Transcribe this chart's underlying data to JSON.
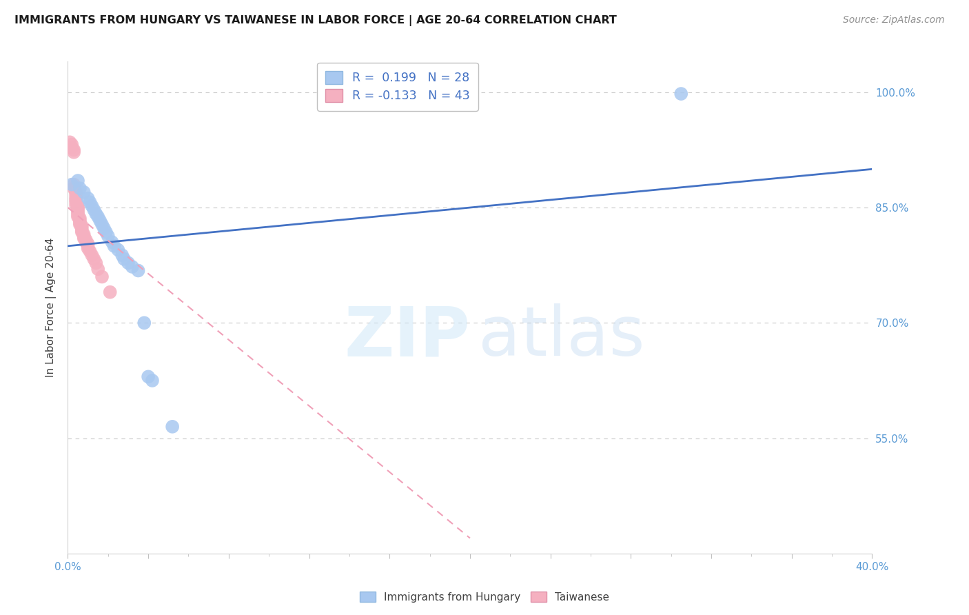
{
  "title": "IMMIGRANTS FROM HUNGARY VS TAIWANESE IN LABOR FORCE | AGE 20-64 CORRELATION CHART",
  "source": "Source: ZipAtlas.com",
  "ylabel": "In Labor Force | Age 20-64",
  "xlim": [
    0.0,
    0.4
  ],
  "ylim": [
    0.4,
    1.04
  ],
  "yticks": [
    0.55,
    0.7,
    0.85,
    1.0
  ],
  "ytick_labels": [
    "55.0%",
    "70.0%",
    "85.0%",
    "100.0%"
  ],
  "xtick_major": [
    0.0,
    0.4
  ],
  "xtick_major_labels": [
    "0.0%",
    "40.0%"
  ],
  "hungary_R": 0.199,
  "hungary_N": 28,
  "taiwanese_R": -0.133,
  "taiwanese_N": 43,
  "hungary_color": "#a8c8f0",
  "taiwanese_color": "#f5b0c0",
  "hungary_line_color": "#4472c4",
  "taiwanese_line_color": "#f0a0b8",
  "hungary_x": [
    0.002,
    0.005,
    0.006,
    0.008,
    0.01,
    0.011,
    0.012,
    0.013,
    0.014,
    0.015,
    0.016,
    0.017,
    0.018,
    0.019,
    0.02,
    0.022,
    0.023,
    0.025,
    0.027,
    0.028,
    0.03,
    0.032,
    0.035,
    0.038,
    0.04,
    0.042,
    0.052,
    0.305
  ],
  "hungary_y": [
    0.88,
    0.885,
    0.875,
    0.87,
    0.862,
    0.857,
    0.852,
    0.847,
    0.842,
    0.838,
    0.833,
    0.828,
    0.823,
    0.818,
    0.813,
    0.805,
    0.8,
    0.795,
    0.788,
    0.783,
    0.778,
    0.773,
    0.768,
    0.7,
    0.63,
    0.625,
    0.565,
    0.998
  ],
  "taiwanese_x": [
    0.001,
    0.002,
    0.002,
    0.003,
    0.003,
    0.003,
    0.003,
    0.004,
    0.004,
    0.004,
    0.004,
    0.004,
    0.004,
    0.005,
    0.005,
    0.005,
    0.005,
    0.005,
    0.005,
    0.005,
    0.006,
    0.006,
    0.006,
    0.006,
    0.007,
    0.007,
    0.007,
    0.007,
    0.008,
    0.008,
    0.008,
    0.009,
    0.009,
    0.01,
    0.01,
    0.01,
    0.011,
    0.012,
    0.013,
    0.014,
    0.015,
    0.017,
    0.021
  ],
  "taiwanese_y": [
    0.935,
    0.932,
    0.928,
    0.925,
    0.922,
    0.88,
    0.875,
    0.87,
    0.867,
    0.863,
    0.86,
    0.857,
    0.853,
    0.852,
    0.85,
    0.848,
    0.845,
    0.843,
    0.84,
    0.838,
    0.836,
    0.833,
    0.83,
    0.828,
    0.826,
    0.823,
    0.82,
    0.818,
    0.815,
    0.812,
    0.81,
    0.808,
    0.805,
    0.803,
    0.8,
    0.797,
    0.793,
    0.788,
    0.783,
    0.778,
    0.77,
    0.76,
    0.74
  ],
  "blue_line_x0": 0.0,
  "blue_line_y0": 0.8,
  "blue_line_x1": 0.4,
  "blue_line_y1": 0.9,
  "pink_line_x0": 0.0,
  "pink_line_y0": 0.85,
  "pink_line_x1": 0.2,
  "pink_line_y1": 0.42
}
